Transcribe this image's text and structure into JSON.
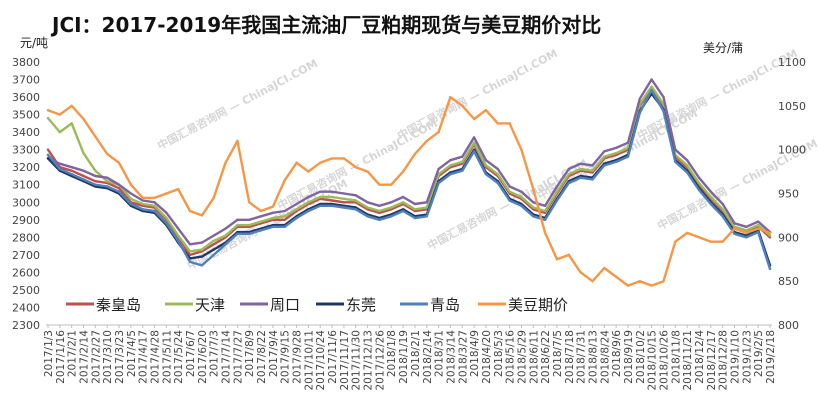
{
  "chart_data": {
    "type": "line",
    "title": "JCI：2017-2019年我国主流油厂豆粕期现货与美豆期价对比",
    "left_unit": "元/吨",
    "right_unit": "美分/蒲",
    "y_left": {
      "min": 2300,
      "max": 3800,
      "step": 100,
      "ticks": [
        "2300",
        "2400",
        "2500",
        "2600",
        "2700",
        "2800",
        "2900",
        "3000",
        "3100",
        "3200",
        "3300",
        "3400",
        "3500",
        "3600",
        "3700",
        "3800"
      ]
    },
    "y_right": {
      "min": 800,
      "max": 1100,
      "step": 50,
      "ticks": [
        "800",
        "850",
        "900",
        "950",
        "1000",
        "1050",
        "1100"
      ]
    },
    "x_dates": [
      "2017/1/3",
      "2017/1/16",
      "2017/2/1",
      "2017/2/14",
      "2017/2/27",
      "2017/3/10",
      "2017/3/23",
      "2017/4/5",
      "2017/4/17",
      "2017/4/28",
      "2017/5/11",
      "2017/5/24",
      "2017/6/7",
      "2017/6/20",
      "2017/7/3",
      "2017/7/14",
      "2017/7/27",
      "2017/8/9",
      "2017/8/22",
      "2017/9/4",
      "2017/9/15",
      "2017/9/28",
      "2017/10/11",
      "2017/10/24",
      "2017/11/6",
      "2017/11/17",
      "2017/11/30",
      "2017/12/13",
      "2017/12/26",
      "2018/1/8",
      "2018/1/19",
      "2018/2/1",
      "2018/2/14",
      "2018/3/1",
      "2018/3/14",
      "2018/3/27",
      "2018/4/9",
      "2018/4/20",
      "2018/5/3",
      "2018/5/16",
      "2018/5/29",
      "2018/6/11",
      "2018/6/22",
      "2018/7/5",
      "2018/7/18",
      "2018/7/31",
      "2018/8/13",
      "2018/8/24",
      "2018/9/6",
      "2018/9/19",
      "2018/10/2",
      "2018/10/15",
      "2018/10/26",
      "2018/11/8",
      "2018/11/21",
      "2018/12/4",
      "2018/12/17",
      "2018/12/28",
      "2019/1/10",
      "2019/1/23",
      "2019/2/5",
      "2019/2/18"
    ],
    "series": [
      {
        "name": "秦皇岛",
        "color": "#c0504d",
        "axis": "left",
        "values": [
          3300,
          3200,
          3180,
          3150,
          3120,
          3110,
          3080,
          3000,
          2980,
          2970,
          2900,
          2800,
          2700,
          2720,
          2760,
          2800,
          2860,
          2860,
          2880,
          2900,
          2900,
          2950,
          2990,
          3020,
          3010,
          3000,
          3000,
          2960,
          2940,
          2960,
          2990,
          2950,
          2960,
          3150,
          3200,
          3220,
          3330,
          3200,
          3150,
          3050,
          3020,
          2960,
          2940,
          3050,
          3150,
          3180,
          3170,
          3250,
          3270,
          3300,
          3550,
          3650,
          3550,
          3260,
          3200,
          3100,
          3020,
          2950,
          2850,
          2830,
          2860,
          2800
        ]
      },
      {
        "name": "天津",
        "color": "#9bbb59",
        "axis": "left",
        "values": [
          3480,
          3400,
          3450,
          3280,
          3180,
          3120,
          3100,
          3020,
          2990,
          2980,
          2910,
          2810,
          2720,
          2730,
          2780,
          2810,
          2870,
          2870,
          2890,
          2910,
          2920,
          2960,
          3000,
          3030,
          3030,
          3020,
          3010,
          2970,
          2950,
          2970,
          3000,
          2960,
          2970,
          3160,
          3210,
          3230,
          3340,
          3210,
          3160,
          3060,
          3030,
          2970,
          2950,
          3060,
          3160,
          3190,
          3180,
          3260,
          3280,
          3310,
          3560,
          3660,
          3560,
          3270,
          3210,
          3110,
          3030,
          2960,
          2860,
          2840,
          2870,
          2810
        ]
      },
      {
        "name": "周口",
        "color": "#8064a2",
        "axis": "left",
        "values": [
          3250,
          3220,
          3200,
          3180,
          3150,
          3140,
          3100,
          3050,
          3010,
          3000,
          2940,
          2850,
          2760,
          2770,
          2810,
          2850,
          2900,
          2900,
          2920,
          2940,
          2950,
          2990,
          3030,
          3060,
          3060,
          3050,
          3040,
          3000,
          2980,
          3000,
          3030,
          2990,
          3000,
          3190,
          3240,
          3260,
          3370,
          3240,
          3190,
          3090,
          3060,
          3000,
          2980,
          3090,
          3190,
          3220,
          3210,
          3290,
          3310,
          3340,
          3590,
          3700,
          3600,
          3300,
          3240,
          3140,
          3060,
          2990,
          2880,
          2860,
          2890,
          2830
        ]
      },
      {
        "name": "东莞",
        "color": "#1f3864",
        "axis": "left",
        "values": [
          3250,
          3180,
          3150,
          3120,
          3090,
          3080,
          3050,
          2980,
          2950,
          2940,
          2870,
          2770,
          2680,
          2690,
          2730,
          2770,
          2830,
          2830,
          2850,
          2870,
          2870,
          2920,
          2960,
          2990,
          2990,
          2980,
          2970,
          2930,
          2910,
          2930,
          2960,
          2920,
          2930,
          3120,
          3170,
          3190,
          3300,
          3170,
          3120,
          3020,
          2990,
          2930,
          2910,
          3020,
          3120,
          3150,
          3140,
          3220,
          3240,
          3270,
          3520,
          3620,
          3530,
          3240,
          3180,
          3080,
          3000,
          2930,
          2830,
          2810,
          2840,
          2640
        ]
      },
      {
        "name": "青岛",
        "color": "#4f81bd",
        "axis": "left",
        "values": [
          3270,
          3190,
          3160,
          3130,
          3100,
          3090,
          3060,
          2990,
          2960,
          2950,
          2880,
          2780,
          2660,
          2640,
          2700,
          2760,
          2820,
          2820,
          2840,
          2860,
          2860,
          2910,
          2950,
          2980,
          2980,
          2970,
          2960,
          2920,
          2900,
          2920,
          2950,
          2910,
          2920,
          3110,
          3160,
          3180,
          3290,
          3160,
          3110,
          3010,
          2980,
          2920,
          2900,
          3010,
          3110,
          3140,
          3130,
          3210,
          3230,
          3260,
          3510,
          3640,
          3520,
          3230,
          3170,
          3070,
          2990,
          2920,
          2820,
          2800,
          2830,
          2620
        ]
      },
      {
        "name": "美豆期价",
        "color": "#f79646",
        "axis": "right",
        "values": [
          1045,
          1040,
          1050,
          1035,
          1015,
          995,
          985,
          960,
          945,
          945,
          950,
          955,
          930,
          925,
          945,
          985,
          1010,
          940,
          930,
          935,
          965,
          985,
          975,
          985,
          990,
          990,
          980,
          975,
          960,
          960,
          975,
          995,
          1010,
          1020,
          1060,
          1050,
          1035,
          1045,
          1030,
          1030,
          1000,
          955,
          905,
          875,
          880,
          860,
          850,
          865,
          855,
          845,
          850,
          845,
          850,
          895,
          905,
          900,
          895,
          895,
          910,
          905,
          910,
          905
        ]
      }
    ]
  },
  "watermark": "中国汇易咨询网 — ChinaJCI.COM"
}
